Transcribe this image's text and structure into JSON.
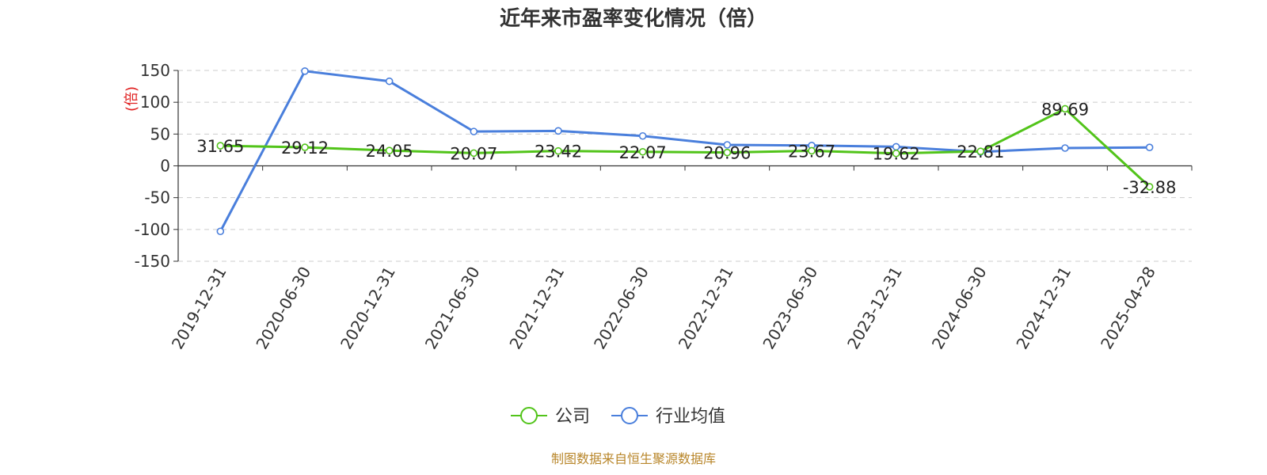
{
  "chart_data": {
    "type": "line",
    "title": "近年来市盈率变化情况（倍）",
    "ylabel": "(倍)",
    "xlabel": "",
    "categories": [
      "2019-12-31",
      "2020-06-30",
      "2020-12-31",
      "2021-06-30",
      "2021-12-31",
      "2022-06-30",
      "2022-12-31",
      "2023-06-30",
      "2023-12-31",
      "2024-06-30",
      "2024-12-31",
      "2025-04-28"
    ],
    "y_ticks": [
      "150",
      "100",
      "50",
      "0",
      "-50",
      "-100",
      "-150"
    ],
    "ylim": [
      -150,
      150
    ],
    "grid": true,
    "legend_position": "bottom",
    "series": [
      {
        "name": "公司",
        "color": "#52c41a",
        "values": [
          31.65,
          29.12,
          24.05,
          20.07,
          23.42,
          22.07,
          20.96,
          23.67,
          19.62,
          22.81,
          89.69,
          -32.88
        ],
        "labels": [
          "31.65",
          "29.12",
          "24.05",
          "20.07",
          "23.42",
          "22.07",
          "20.96",
          "23.67",
          "19.62",
          "22.81",
          "89.69",
          "-32.88"
        ]
      },
      {
        "name": "行业均值",
        "color": "#4a7fdc",
        "values": [
          -103,
          149,
          133,
          54,
          55,
          47,
          33,
          32,
          30,
          22,
          28,
          29
        ]
      }
    ]
  },
  "source_text": "制图数据来自恒生聚源数据库"
}
